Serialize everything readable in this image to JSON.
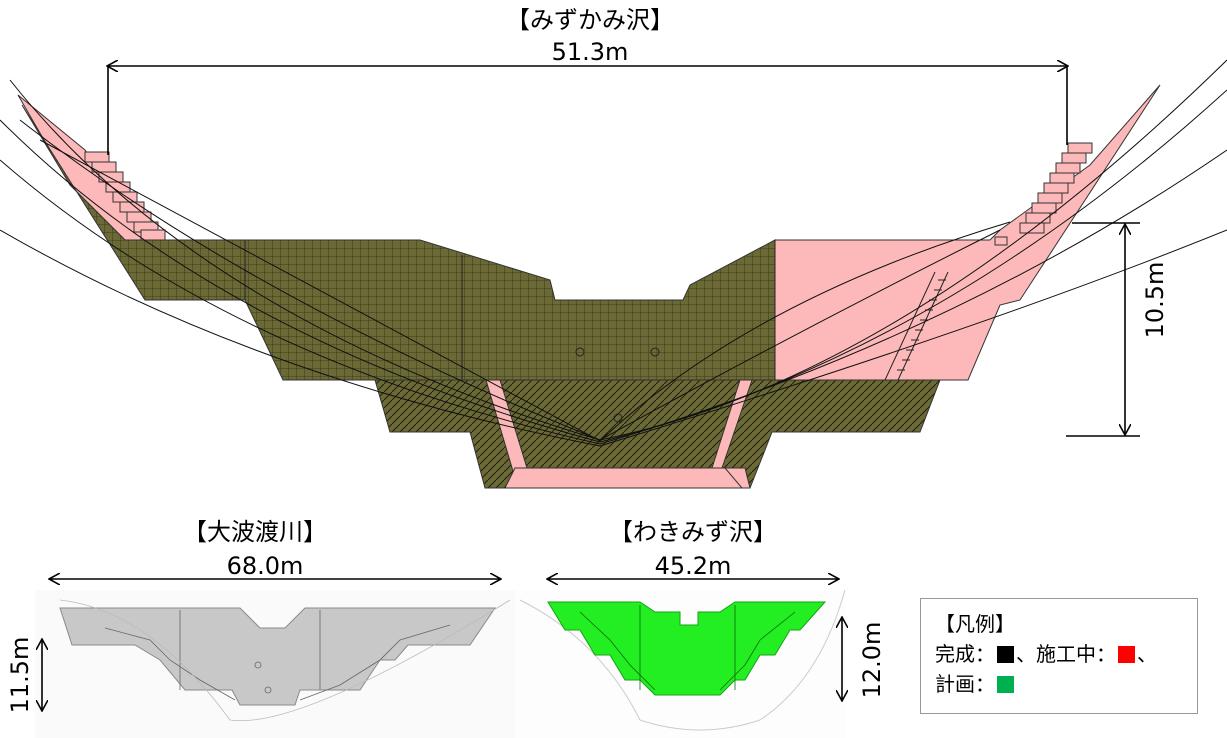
{
  "sections": [
    {
      "title": "【みずかみ沢】",
      "width": "51.3m",
      "height": "10.5m"
    },
    {
      "title": "【大波渡川】",
      "width": "68.0m",
      "height": "11.5m"
    },
    {
      "title": "【わきみず沢】",
      "width": "45.2m",
      "height": "12.0m"
    }
  ],
  "legend": {
    "title": "【凡例】",
    "complete_label": "完成：",
    "sep1": "、",
    "in_progress_label": "施工中：",
    "sep2": "、",
    "planned_label": "計画：",
    "colors": {
      "complete": "#000000",
      "in_progress": "#ff0000",
      "planned": "#00b050"
    }
  }
}
